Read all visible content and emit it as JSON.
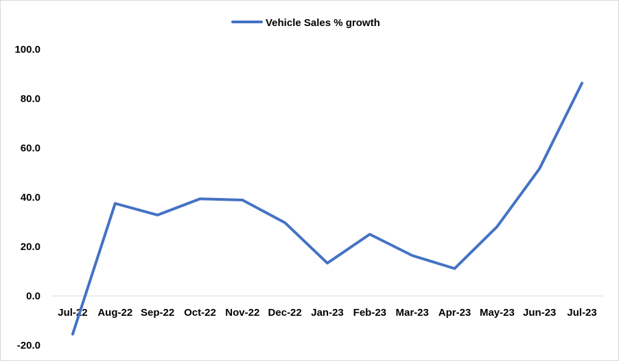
{
  "chart_data": {
    "type": "line",
    "title": "",
    "xlabel": "",
    "ylabel": "",
    "categories": [
      "Jul-22",
      "Aug-22",
      "Sep-22",
      "Oct-22",
      "Nov-22",
      "Dec-22",
      "Jan-23",
      "Feb-23",
      "Mar-23",
      "Apr-23",
      "May-23",
      "Jun-23",
      "Jul-23"
    ],
    "series": [
      {
        "name": "Vehicle Sales % growth",
        "color": "#4472C4",
        "values": [
          -15.5,
          37.5,
          32.8,
          39.4,
          38.9,
          29.7,
          13.3,
          25.0,
          16.4,
          11.1,
          28.1,
          51.6,
          86.3
        ]
      }
    ],
    "ylim": [
      -20,
      100
    ],
    "y_ticks": [
      "-20.0",
      "0.0",
      "20.0",
      "40.0",
      "60.0",
      "80.0",
      "100.0"
    ],
    "legend_position": "top",
    "grid": false
  }
}
